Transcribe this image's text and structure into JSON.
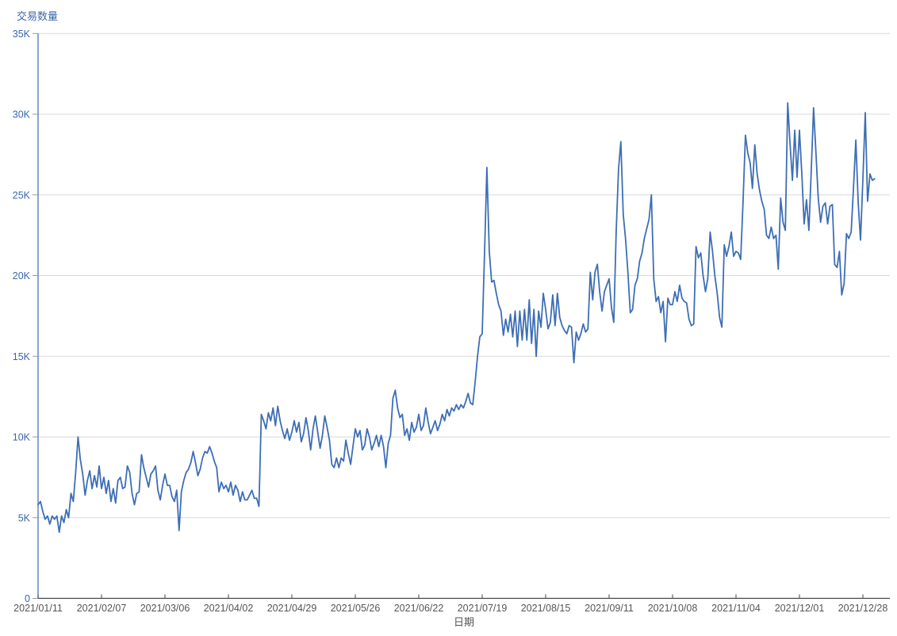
{
  "chart_data": {
    "type": "line",
    "title": "",
    "y_axis_title": "交易数量",
    "x_axis_title": "日期",
    "values_unit": "thousands",
    "x_start_date": "2021/01/11",
    "x_interval_days": 1,
    "y_ticks": [
      0,
      5,
      10,
      15,
      20,
      25,
      30,
      35
    ],
    "y_tick_labels": [
      "0",
      "5K",
      "10K",
      "15K",
      "20K",
      "25K",
      "30K",
      "35K"
    ],
    "ylim": [
      0,
      35
    ],
    "grid": "horizontal-only",
    "legend": "none",
    "x_tick_days": [
      0,
      27,
      54,
      81,
      108,
      135,
      162,
      189,
      216,
      243,
      270,
      297,
      324,
      351
    ],
    "x_tick_labels": [
      "2021/01/11",
      "2021/02/07",
      "2021/03/06",
      "2021/04/02",
      "2021/04/29",
      "2021/05/26",
      "2021/06/22",
      "2021/07/19",
      "2021/08/15",
      "2021/09/11",
      "2021/10/08",
      "2021/11/04",
      "2021/12/01",
      "2021/12/28"
    ],
    "series": [
      {
        "name": "交易数量",
        "values": [
          5.8,
          6.0,
          5.4,
          4.9,
          5.1,
          4.6,
          5.1,
          4.9,
          5.1,
          4.1,
          5.1,
          4.7,
          5.5,
          5.0,
          6.5,
          6.0,
          7.8,
          10.0,
          8.6,
          7.7,
          6.4,
          7.3,
          7.9,
          6.8,
          7.6,
          6.9,
          8.2,
          6.8,
          7.5,
          6.5,
          7.3,
          6.0,
          6.8,
          5.9,
          7.3,
          7.5,
          6.8,
          6.9,
          8.2,
          7.8,
          6.5,
          5.8,
          6.5,
          6.6,
          8.9,
          8.1,
          7.5,
          6.9,
          7.7,
          7.9,
          8.2,
          6.7,
          6.1,
          7.0,
          7.7,
          7.0,
          7.0,
          6.3,
          6.0,
          6.7,
          4.2,
          6.6,
          7.3,
          7.8,
          8.0,
          8.4,
          9.1,
          8.4,
          7.6,
          8.0,
          8.7,
          9.1,
          9.0,
          9.4,
          9.0,
          8.5,
          8.1,
          6.6,
          7.2,
          6.8,
          7.0,
          6.6,
          7.2,
          6.4,
          7.0,
          6.7,
          6.0,
          6.6,
          6.1,
          6.1,
          6.4,
          6.7,
          6.2,
          6.2,
          5.7,
          11.4,
          11.0,
          10.5,
          11.5,
          11.0,
          11.8,
          10.7,
          11.9,
          11.0,
          10.4,
          9.9,
          10.5,
          9.8,
          10.3,
          11.0,
          10.3,
          10.9,
          9.7,
          10.2,
          11.2,
          10.4,
          9.2,
          10.5,
          11.3,
          10.3,
          9.3,
          10.1,
          11.3,
          10.6,
          9.8,
          8.3,
          8.1,
          8.7,
          8.1,
          8.7,
          8.5,
          9.8,
          9.0,
          8.3,
          9.4,
          10.5,
          10.0,
          10.4,
          9.2,
          9.5,
          10.5,
          10.0,
          9.2,
          9.6,
          10.1,
          9.4,
          10.1,
          9.4,
          8.1,
          9.6,
          10.1,
          12.4,
          12.9,
          11.8,
          11.2,
          11.4,
          10.1,
          10.5,
          9.8,
          10.9,
          10.3,
          10.6,
          11.4,
          10.4,
          10.7,
          11.8,
          10.9,
          10.2,
          10.6,
          11.0,
          10.4,
          10.8,
          11.4,
          11.0,
          11.7,
          11.3,
          11.8,
          11.6,
          12.0,
          11.7,
          12.0,
          11.8,
          12.2,
          12.7,
          12.1,
          12.0,
          13.4,
          15.0,
          16.2,
          16.4,
          21.5,
          26.7,
          21.5,
          19.6,
          19.7,
          18.9,
          18.2,
          17.8,
          16.3,
          17.3,
          16.5,
          17.6,
          16.2,
          17.8,
          15.6,
          17.8,
          16.0,
          17.9,
          16.0,
          18.5,
          15.8,
          17.9,
          15.0,
          17.8,
          16.8,
          18.9,
          17.9,
          16.7,
          17.1,
          18.8,
          16.9,
          18.9,
          17.4,
          16.9,
          16.6,
          16.4,
          16.9,
          16.8,
          14.6,
          16.5,
          16.0,
          16.4,
          17.0,
          16.5,
          16.7,
          20.2,
          18.5,
          20.2,
          20.7,
          19.0,
          17.8,
          19.0,
          19.4,
          19.8,
          18.0,
          17.1,
          22.7,
          26.6,
          28.3,
          23.8,
          22.3,
          20.2,
          17.7,
          17.9,
          19.4,
          19.8,
          20.9,
          21.4,
          22.3,
          22.9,
          23.5,
          25.0,
          19.8,
          18.4,
          18.7,
          17.7,
          18.4,
          15.9,
          18.6,
          18.2,
          18.2,
          19.0,
          18.4,
          19.4,
          18.6,
          18.4,
          18.3,
          17.3,
          16.9,
          17.0,
          21.8,
          21.1,
          21.4,
          20.0,
          19.0,
          19.8,
          22.7,
          21.5,
          20.0,
          18.9,
          17.4,
          16.8,
          21.9,
          21.2,
          21.8,
          22.7,
          21.2,
          21.5,
          21.4,
          21.0,
          24.6,
          28.7,
          27.6,
          27.0,
          25.4,
          28.1,
          26.3,
          25.3,
          24.6,
          24.1,
          22.5,
          22.3,
          23.0,
          22.3,
          22.5,
          20.4,
          24.8,
          23.3,
          22.8,
          30.7,
          28.2,
          25.9,
          29.0,
          26.1,
          29.0,
          26.3,
          23.2,
          24.7,
          22.8,
          26.4,
          30.4,
          27.7,
          24.8,
          23.3,
          24.3,
          24.5,
          23.2,
          24.3,
          24.4,
          20.7,
          20.5,
          21.5,
          18.8,
          19.5,
          22.6,
          22.3,
          22.7,
          25.4,
          28.4,
          24.5,
          22.2,
          26.0,
          30.1,
          24.6,
          26.3,
          25.9,
          26.0
        ]
      }
    ],
    "colors": {
      "line": "#3d6eb5",
      "y_axis_line": "#4a74b4",
      "y_label": "#3a66ad",
      "x_axis_line": "#444444",
      "x_label": "#555555",
      "gridline": "#d9d9d9",
      "y_tick": "#999999",
      "x_tick": "#444444"
    }
  }
}
